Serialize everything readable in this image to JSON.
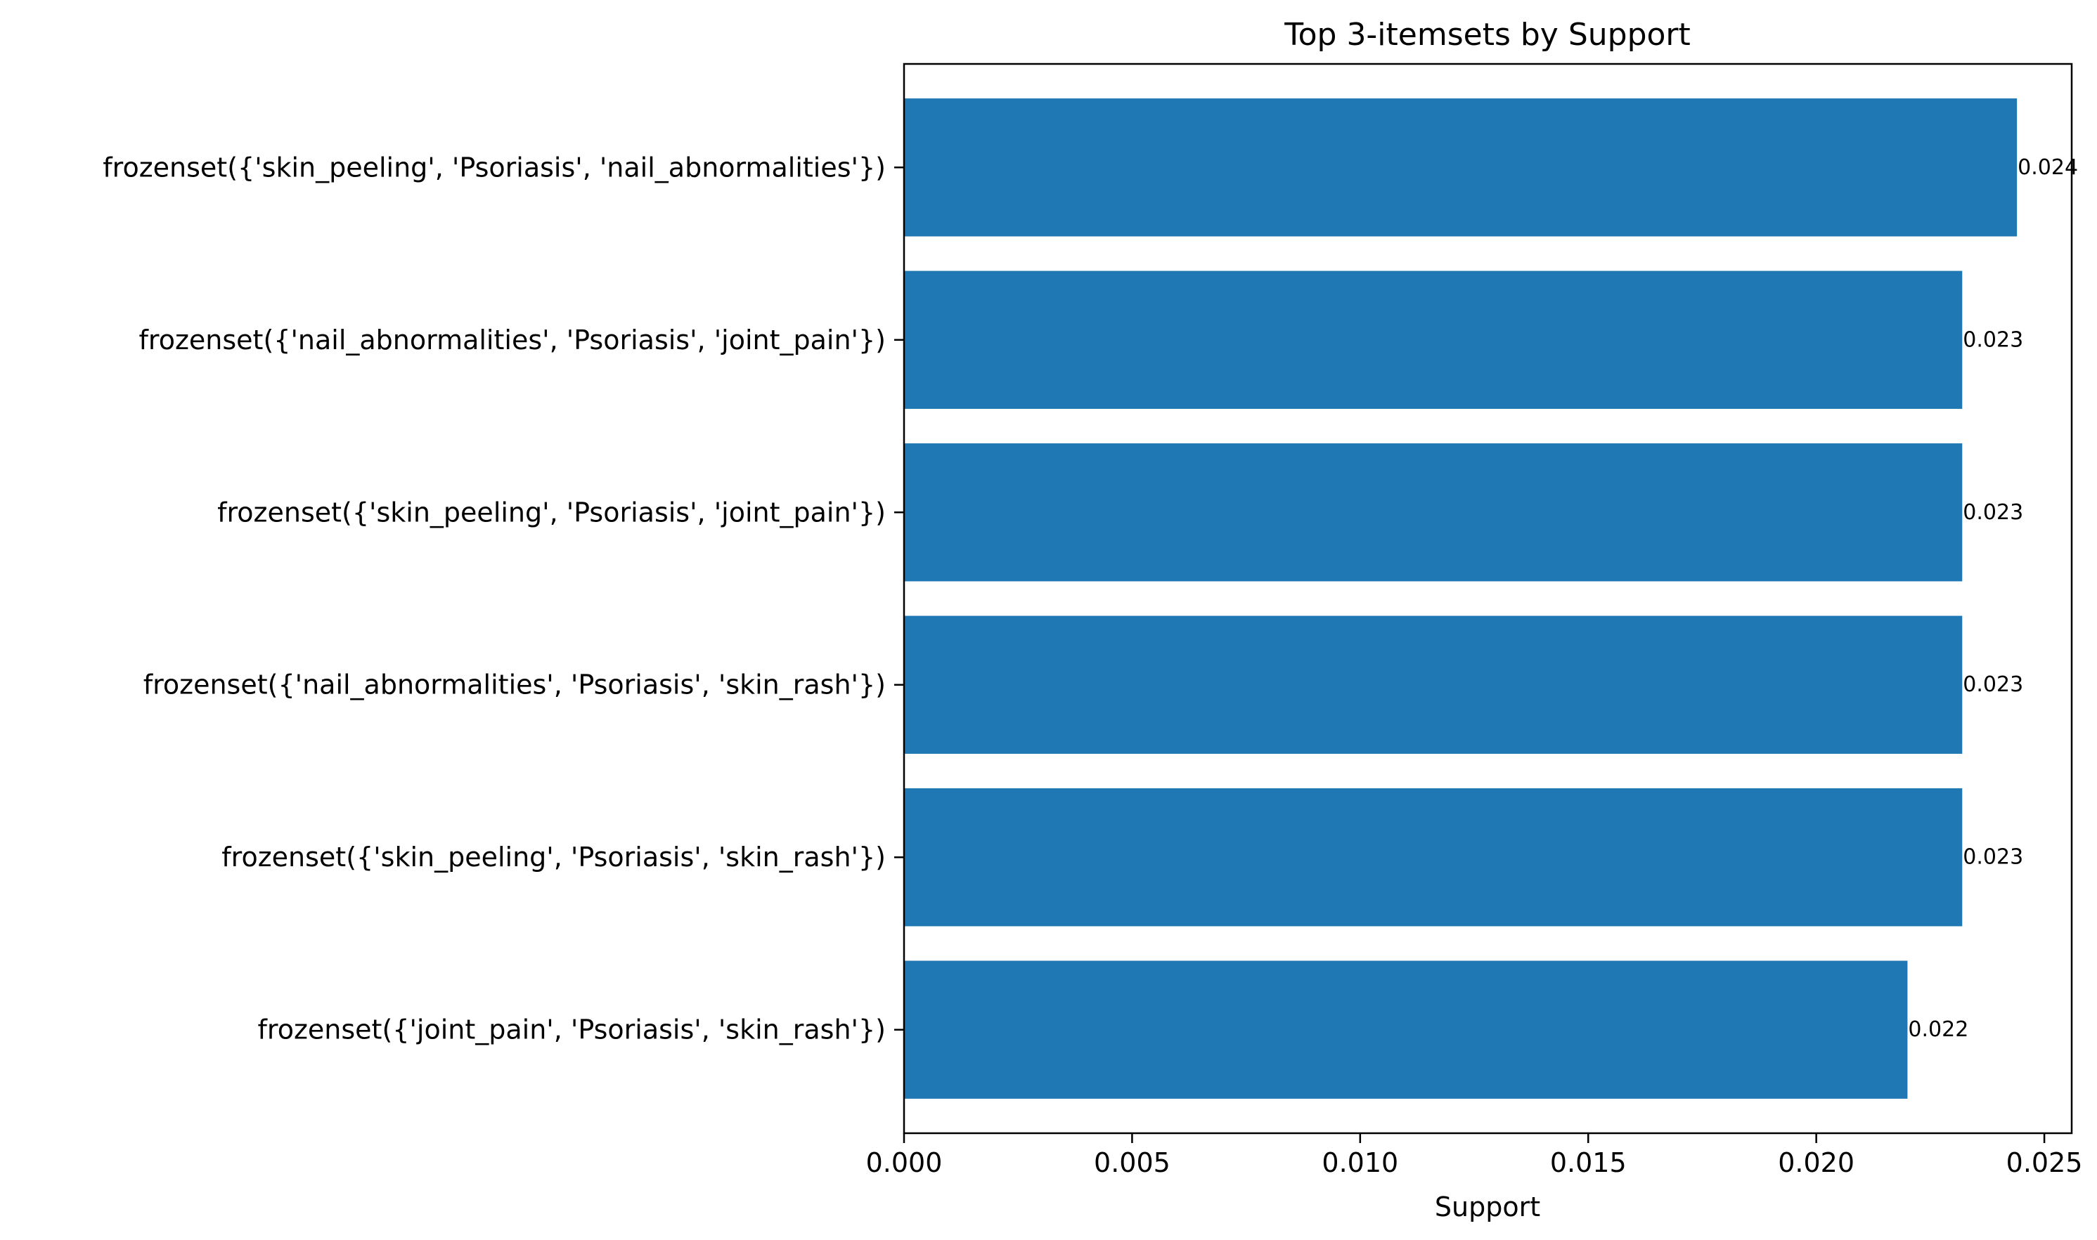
{
  "chart_data": {
    "type": "bar",
    "orientation": "horizontal",
    "title": "Top 3-itemsets by Support",
    "xlabel": "Support",
    "ylabel": "",
    "categories": [
      "frozenset({'skin_peeling', 'Psoriasis', 'nail_abnormalities'})",
      "frozenset({'nail_abnormalities', 'Psoriasis', 'joint_pain'})",
      "frozenset({'skin_peeling', 'Psoriasis', 'joint_pain'})",
      "frozenset({'nail_abnormalities', 'Psoriasis', 'skin_rash'})",
      "frozenset({'skin_peeling', 'Psoriasis', 'skin_rash'})",
      "frozenset({'joint_pain', 'Psoriasis', 'skin_rash'})"
    ],
    "values": [
      0.0244,
      0.0232,
      0.0232,
      0.0232,
      0.0232,
      0.022
    ],
    "value_labels": [
      "0.024",
      "0.023",
      "0.023",
      "0.023",
      "0.023",
      "0.022"
    ],
    "xlim": [
      0,
      0.0256
    ],
    "xticks": [
      0,
      0.005,
      0.01,
      0.015,
      0.02,
      0.025
    ],
    "xtick_labels": [
      "0.000",
      "0.005",
      "0.010",
      "0.015",
      "0.020",
      "0.025"
    ],
    "bar_color": "#1f77b4",
    "grid": false,
    "legend": "none"
  }
}
